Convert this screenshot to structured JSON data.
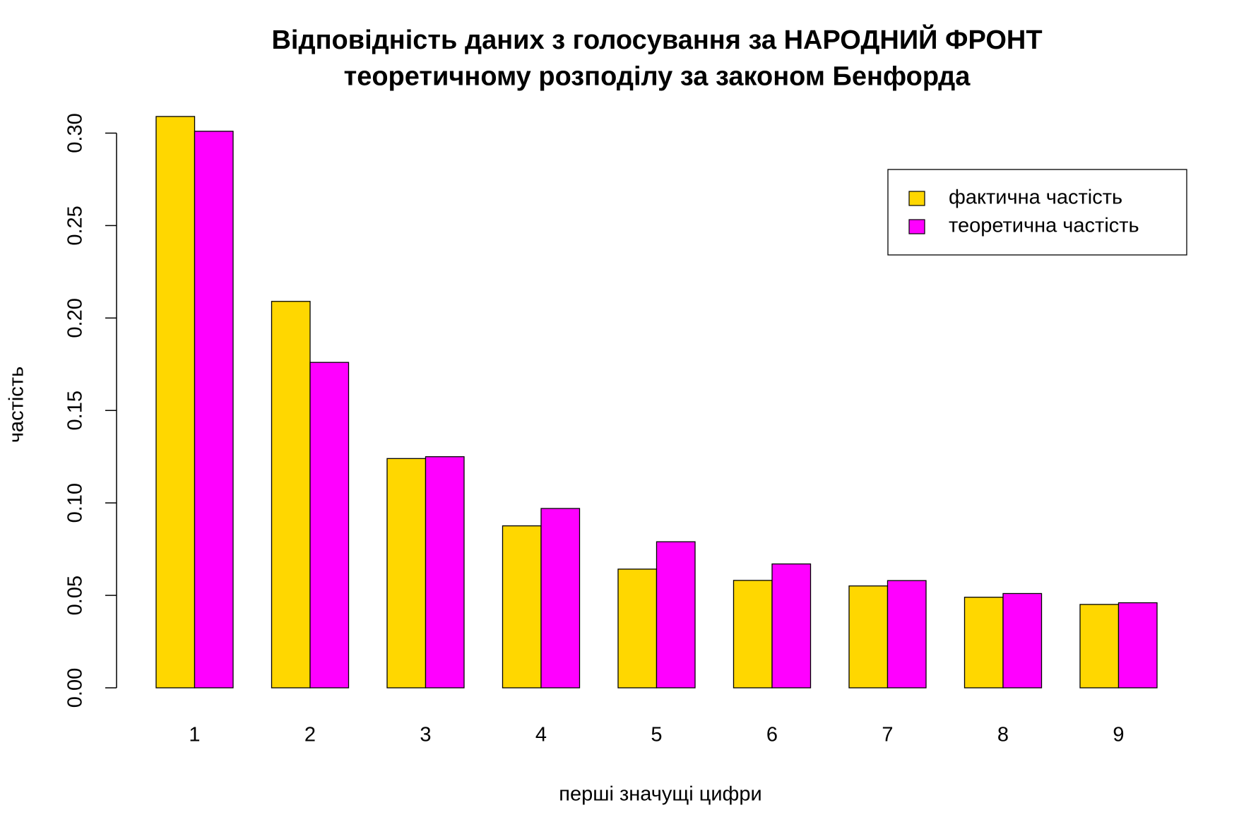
{
  "chart_data": {
    "type": "bar",
    "title": "Відповідність даних з голосування за НАРОДНИЙ ФРОНТ\nтеоретичному розподілу за законом Бенфорда",
    "x_label": "перші значущі цифри",
    "y_label": "частість",
    "categories": [
      "1",
      "2",
      "3",
      "4",
      "5",
      "6",
      "7",
      "8",
      "9"
    ],
    "series": [
      {
        "name": "фактична частість",
        "color": "#ffd700",
        "values": [
          0.309,
          0.209,
          0.124,
          0.0876,
          0.0642,
          0.0581,
          0.0551,
          0.049,
          0.0451
        ]
      },
      {
        "name": "теоретична частість",
        "color": "#ff00ff",
        "values": [
          0.301,
          0.176,
          0.125,
          0.097,
          0.079,
          0.067,
          0.058,
          0.051,
          0.046
        ]
      }
    ],
    "ylim": [
      0,
      0.3
    ],
    "yticks": [
      {
        "value": 0,
        "label": "0.00"
      },
      {
        "value": 0.05,
        "label": "0.05"
      },
      {
        "value": 0.1,
        "label": "0.10"
      },
      {
        "value": 0.15,
        "label": "0.15"
      },
      {
        "value": 0.2,
        "label": "0.20"
      },
      {
        "value": 0.25,
        "label": "0.25"
      },
      {
        "value": 0.3,
        "label": "0.30"
      }
    ],
    "legend": "topright",
    "grid": false
  }
}
